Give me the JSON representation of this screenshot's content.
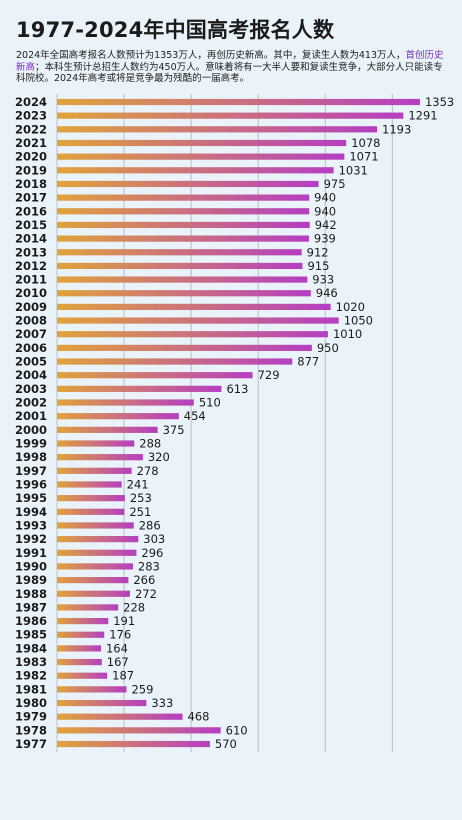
{
  "title": "1977-2024年中国高考报名人数",
  "subtitle": {
    "p1": "2024年全国高考报名人数预计为1353万人，再创历史新高。其中，复读生人数为413万人，",
    "p2": "首创历史新高",
    "p3": "；本科生预计总招生人数约为450万人。意味着将有一大半人要和复读生竞争，大部分人只能读专科院校。2024年高考或将是竞争最为残酷的一届高考。"
  },
  "colors": {
    "bar_start": "#e0a33a",
    "bar_end": "#b53ec2",
    "background": "#e9f3f9",
    "grid": "#b9c0c6",
    "highlight_text": "#7a2ec0"
  },
  "chart_data": {
    "type": "bar",
    "orientation": "horizontal",
    "title": "1977-2024年中国高考报名人数",
    "xlim": [
      0,
      1450
    ],
    "grid": true,
    "categories": [
      "2024",
      "2023",
      "2022",
      "2021",
      "2020",
      "2019",
      "2018",
      "2017",
      "2016",
      "2015",
      "2014",
      "2013",
      "2012",
      "2011",
      "2010",
      "2009",
      "2008",
      "2007",
      "2006",
      "2005",
      "2004",
      "2003",
      "2002",
      "2001",
      "2000",
      "1999",
      "1998",
      "1997",
      "1996",
      "1995",
      "1994",
      "1993",
      "1992",
      "1991",
      "1990",
      "1989",
      "1988",
      "1987",
      "1986",
      "1985",
      "1984",
      "1983",
      "1982",
      "1981",
      "1980",
      "1979",
      "1978",
      "1977"
    ],
    "values": [
      1353,
      1291,
      1193,
      1078,
      1071,
      1031,
      975,
      940,
      940,
      942,
      939,
      912,
      915,
      933,
      946,
      1020,
      1050,
      1010,
      950,
      877,
      729,
      613,
      510,
      454,
      375,
      288,
      320,
      278,
      241,
      253,
      251,
      286,
      303,
      296,
      283,
      266,
      272,
      228,
      191,
      176,
      164,
      167,
      187,
      259,
      333,
      468,
      610,
      570
    ]
  }
}
